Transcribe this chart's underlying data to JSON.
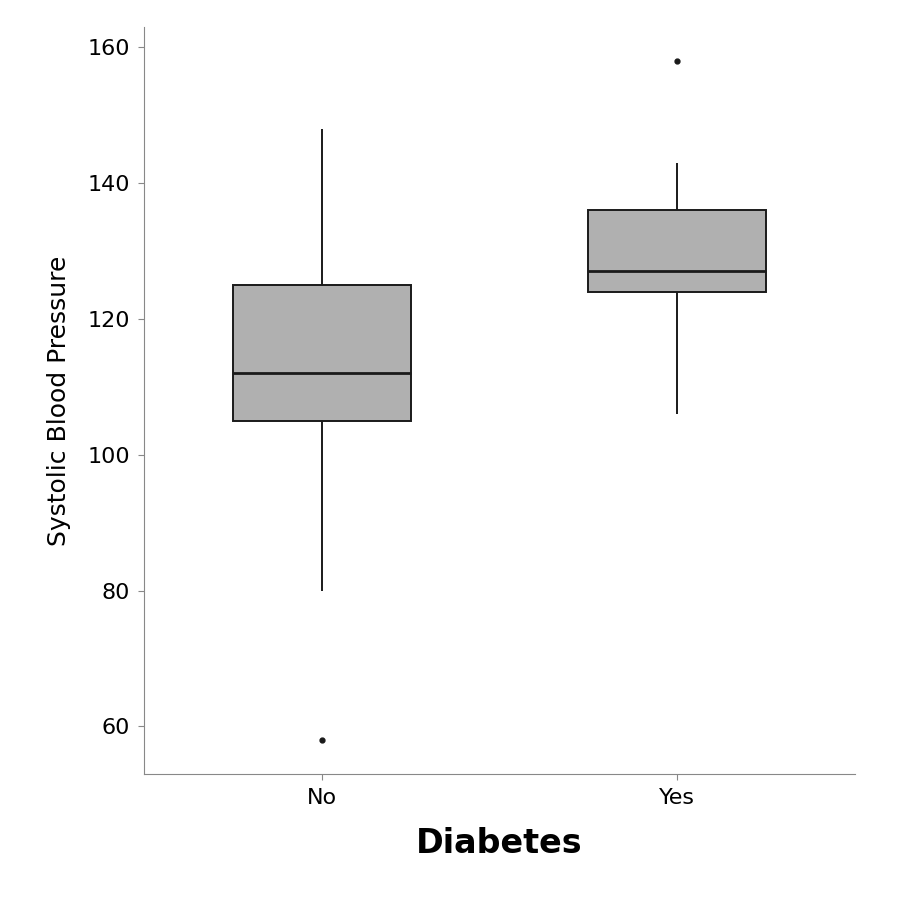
{
  "categories": [
    "No",
    "Yes"
  ],
  "xlabel": "Diabetes",
  "ylabel": "Systolic Blood Pressure",
  "ylim": [
    53,
    163
  ],
  "yticks": [
    60,
    80,
    100,
    120,
    140,
    160
  ],
  "box_no": {
    "q1": 105,
    "median": 112,
    "q3": 125,
    "whisker_low": 80,
    "whisker_high": 148,
    "outliers": [
      58
    ]
  },
  "box_yes": {
    "q1": 124,
    "median": 127,
    "q3": 136,
    "whisker_low": 106,
    "whisker_high": 143,
    "outliers": [
      158
    ]
  },
  "box_color": "#b0b0b0",
  "box_edgecolor": "#1a1a1a",
  "median_color": "#1a1a1a",
  "whisker_color": "#1a1a1a",
  "outlier_color": "#1a1a1a",
  "box_width": 0.5,
  "linewidth": 1.4,
  "median_linewidth": 2.0,
  "xlabel_fontsize": 24,
  "ylabel_fontsize": 18,
  "tick_fontsize": 16,
  "xtick_fontsize": 16,
  "background_color": "#ffffff",
  "plot_bg_color": "#ffffff",
  "spine_color": "#888888",
  "spine_linewidth": 0.8
}
